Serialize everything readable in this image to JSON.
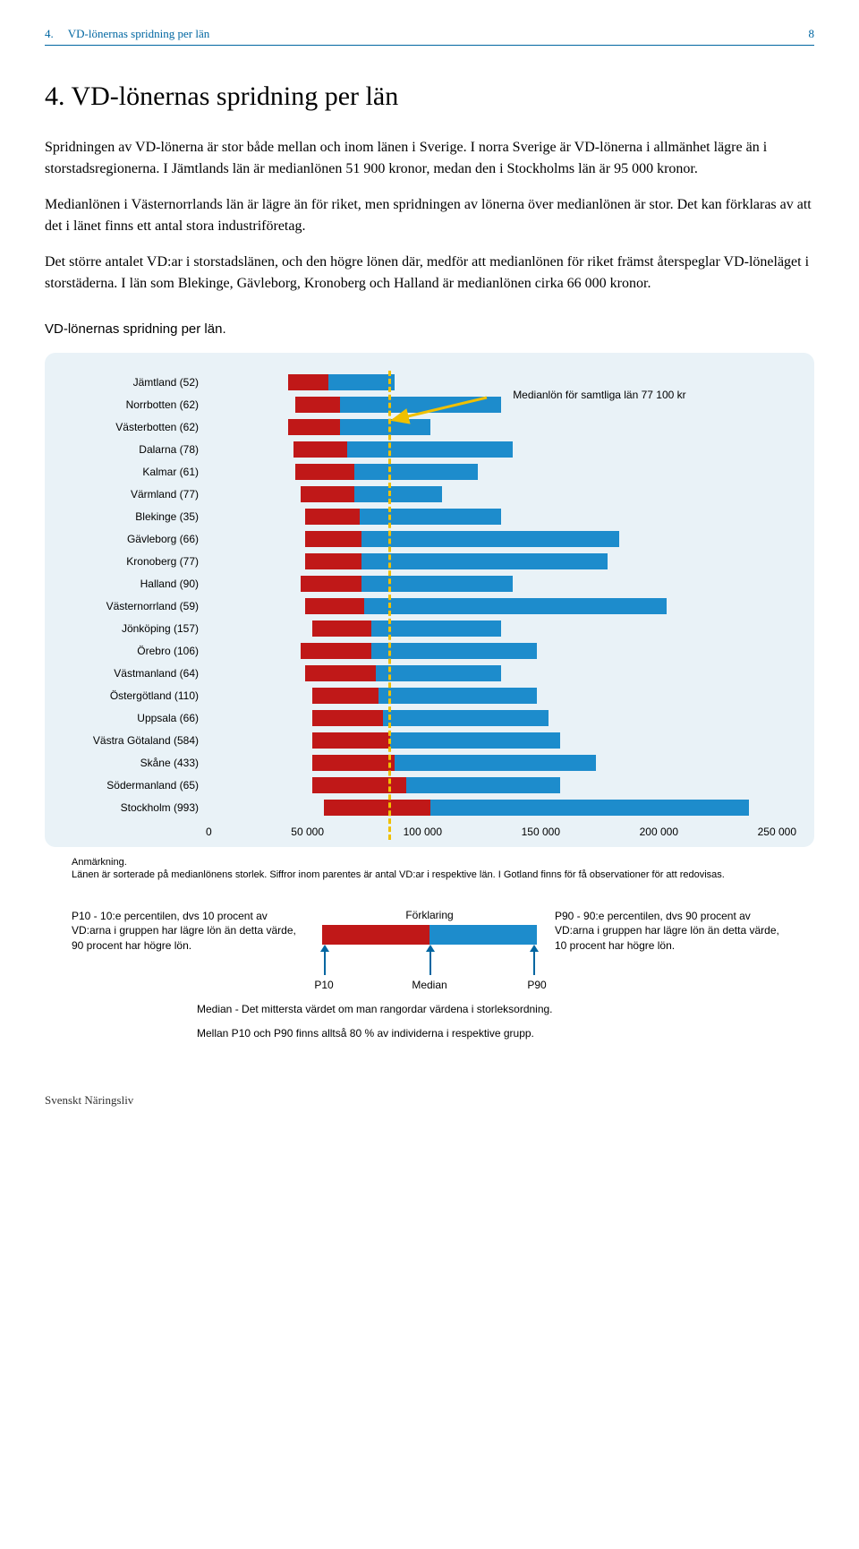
{
  "header": {
    "section_num": "4.",
    "section_title": "VD-lönernas spridning per län",
    "page_num": "8"
  },
  "heading": "4.   VD-lönernas spridning per län",
  "paragraphs": [
    "Spridningen av VD-lönerna är stor både mellan och inom länen i Sverige. I norra Sverige är VD-lönerna i allmänhet lägre än i storstadsregionerna. I Jämtlands län är medianlönen 51 900 kronor, medan den i Stockholms län är 95 000 kronor.",
    "Medianlönen i Västernorrlands län är lägre än för riket, men spridningen av lönerna över medianlönen är stor. Det kan förklaras av att det i länet finns ett antal stora industriföretag.",
    "Det större antalet VD:ar i storstadslänen, och den högre lönen där, medför att medianlönen för riket främst återspeglar VD-löneläget i storstäderna. I län som Blekinge, Gävleborg, Kronoberg och Halland är medianlönen cirka 66 000 kronor."
  ],
  "chart": {
    "title": "VD-lönernas spridning per län.",
    "x_max": 250000,
    "x_ticks": [
      "0",
      "50 000",
      "100 000",
      "150 000",
      "200 000",
      "250 000"
    ],
    "median_line_value": 77100,
    "median_annot": "Medianlön för samtliga län 77 100 kr",
    "rows": [
      {
        "label": "Jämtland (52)",
        "p10": 35000,
        "p50": 51900,
        "p90": 80000
      },
      {
        "label": "Norrbotten (62)",
        "p10": 38000,
        "p50": 57000,
        "p90": 125000
      },
      {
        "label": "Västerbotten (62)",
        "p10": 35000,
        "p50": 57000,
        "p90": 95000
      },
      {
        "label": "Dalarna (78)",
        "p10": 37000,
        "p50": 60000,
        "p90": 130000
      },
      {
        "label": "Kalmar (61)",
        "p10": 38000,
        "p50": 63000,
        "p90": 115000
      },
      {
        "label": "Värmland (77)",
        "p10": 40000,
        "p50": 63000,
        "p90": 100000
      },
      {
        "label": "Blekinge (35)",
        "p10": 42000,
        "p50": 65000,
        "p90": 125000
      },
      {
        "label": "Gävleborg (66)",
        "p10": 42000,
        "p50": 66000,
        "p90": 175000
      },
      {
        "label": "Kronoberg (77)",
        "p10": 42000,
        "p50": 66000,
        "p90": 170000
      },
      {
        "label": "Halland (90)",
        "p10": 40000,
        "p50": 66000,
        "p90": 130000
      },
      {
        "label": "Västernorrland (59)",
        "p10": 42000,
        "p50": 67000,
        "p90": 195000
      },
      {
        "label": "Jönköping (157)",
        "p10": 45000,
        "p50": 70000,
        "p90": 125000
      },
      {
        "label": "Örebro (106)",
        "p10": 40000,
        "p50": 70000,
        "p90": 140000
      },
      {
        "label": "Västmanland (64)",
        "p10": 42000,
        "p50": 72000,
        "p90": 125000
      },
      {
        "label": "Östergötland (110)",
        "p10": 45000,
        "p50": 73000,
        "p90": 140000
      },
      {
        "label": "Uppsala (66)",
        "p10": 45000,
        "p50": 75000,
        "p90": 145000
      },
      {
        "label": "Västra Götaland (584)",
        "p10": 45000,
        "p50": 78000,
        "p90": 150000
      },
      {
        "label": "Skåne (433)",
        "p10": 45000,
        "p50": 80000,
        "p90": 165000
      },
      {
        "label": "Södermanland (65)",
        "p10": 45000,
        "p50": 85000,
        "p90": 150000
      },
      {
        "label": "Stockholm (993)",
        "p10": 50000,
        "p50": 95000,
        "p90": 230000
      }
    ],
    "note_title": "Anmärkning.",
    "note": "Länen är sorterade på medianlönens storlek. Siffror inom parentes är antal VD:ar i respektive län. I Gotland finns för få observationer för att redovisas."
  },
  "legend": {
    "title": "Förklaring",
    "p10_text": "P10 - 10:e percentilen, dvs 10 procent av VD:arna i gruppen har lägre lön än detta värde, 90 procent har högre lön.",
    "p90_text": "P90 - 90:e percentilen, dvs 90 procent av VD:arna i gruppen har lägre lön än detta värde, 10 procent har högre lön.",
    "p10_label": "P10",
    "median_label": "Median",
    "p90_label": "P90",
    "median_text": "Median - Det mittersta värdet om man rangordar värdena i storleksordning.",
    "summary": "Mellan P10 och P90 finns alltså 80 % av individerna i respektive grupp."
  },
  "footer": "Svenskt Näringsliv",
  "colors": {
    "red": "#c01818",
    "blue": "#1d8ccc",
    "box_bg": "#e9f2f7",
    "header_blue": "#0066a1",
    "dash_yellow": "#f0c000"
  }
}
